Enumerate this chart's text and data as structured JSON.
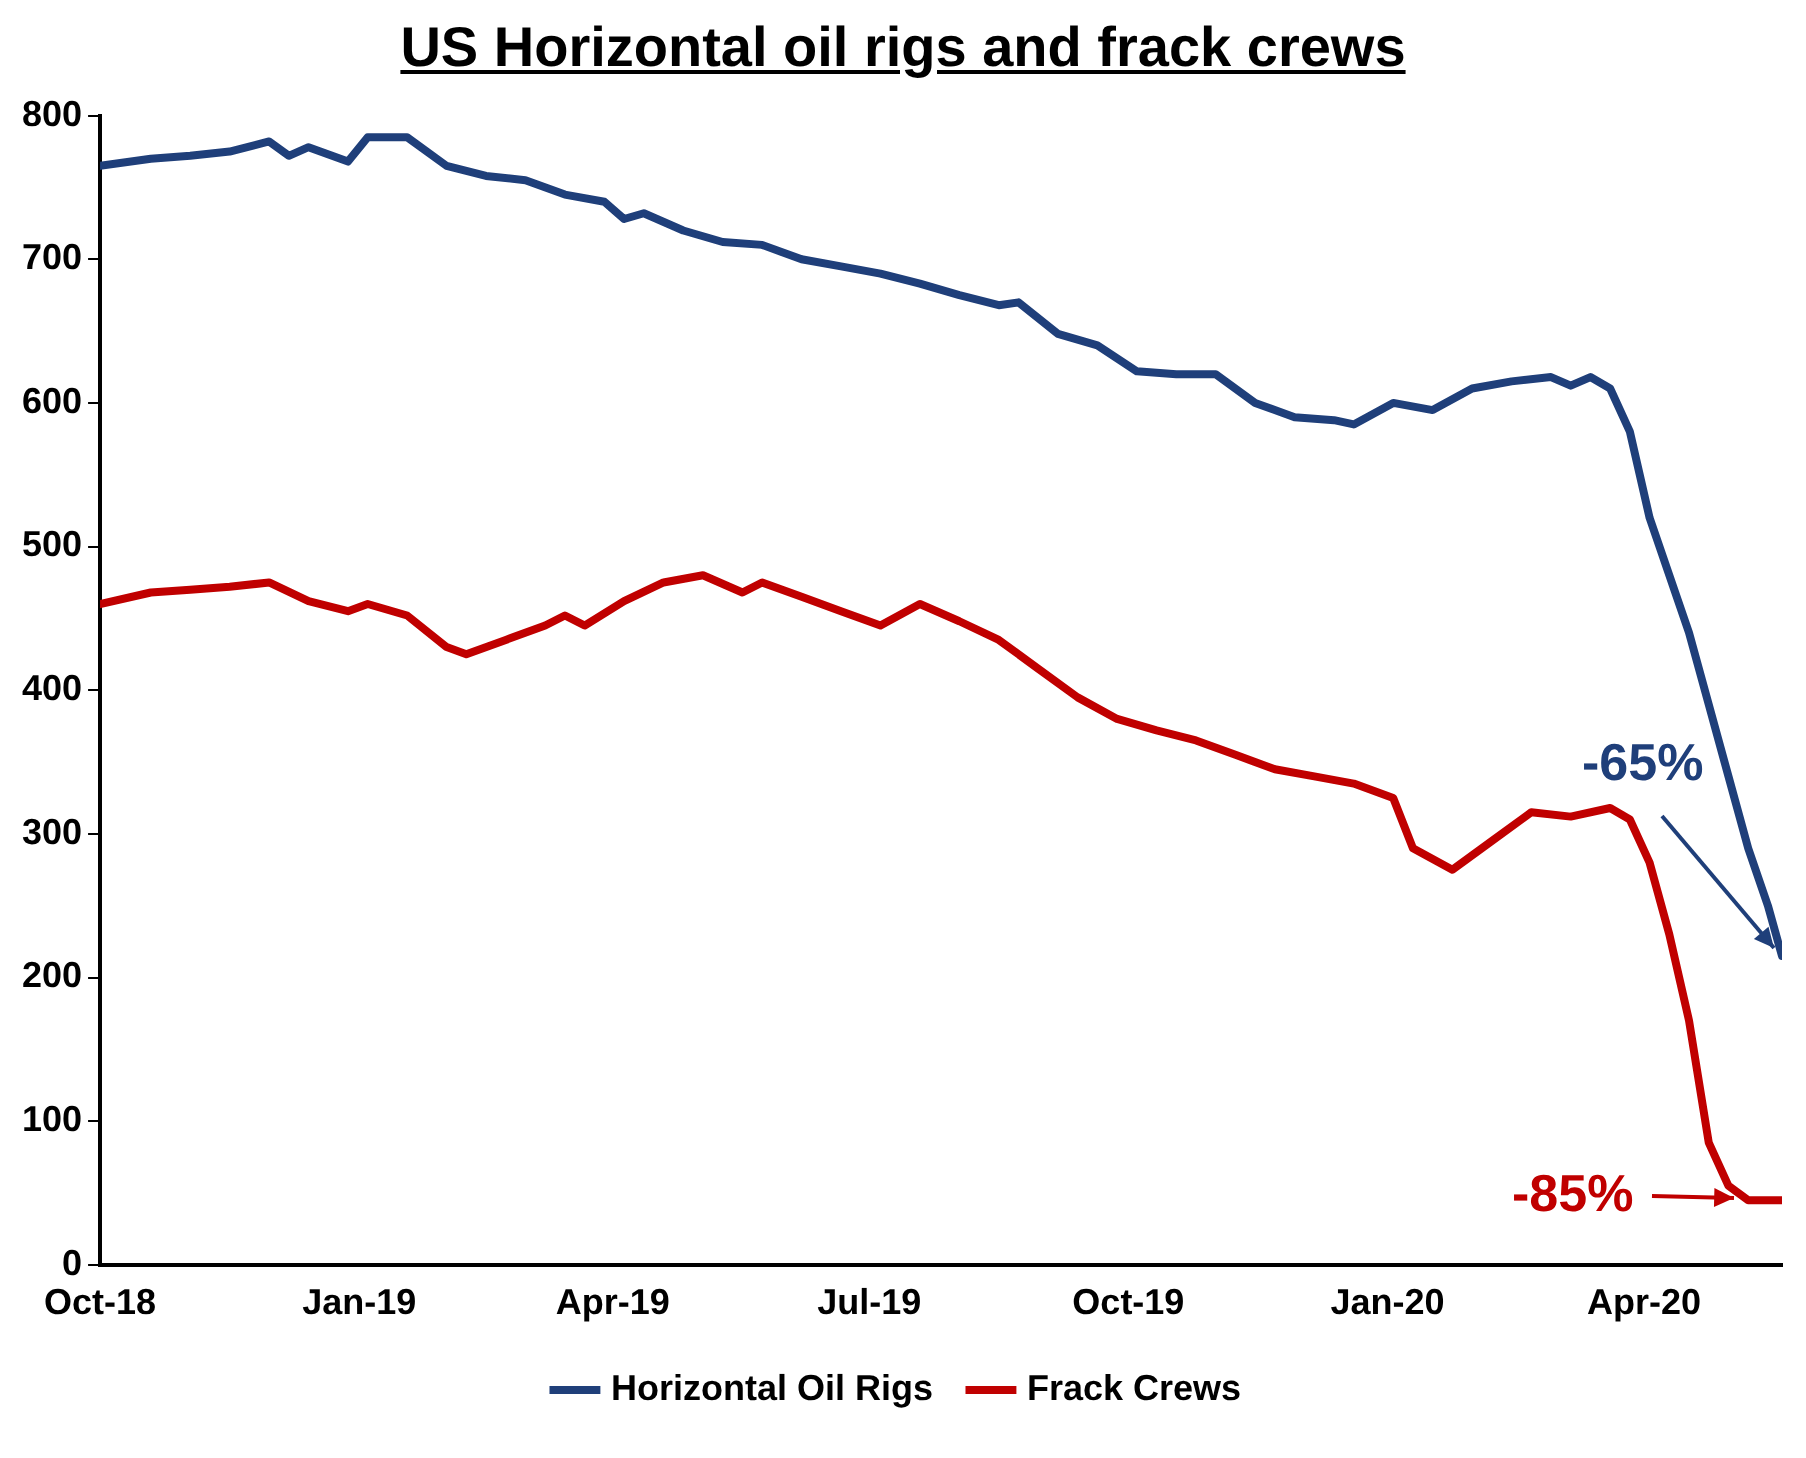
{
  "chart_data": {
    "type": "line",
    "title": "US Horizontal oil rigs and frack crews",
    "xlim": [
      "2018-10-01",
      "2020-05-20"
    ],
    "xticks": [
      {
        "value": "2018-10-01",
        "label": "Oct-18"
      },
      {
        "value": "2019-01-01",
        "label": "Jan-19"
      },
      {
        "value": "2019-04-01",
        "label": "Apr-19"
      },
      {
        "value": "2019-07-01",
        "label": "Jul-19"
      },
      {
        "value": "2019-10-01",
        "label": "Oct-19"
      },
      {
        "value": "2020-01-01",
        "label": "Jan-20"
      },
      {
        "value": "2020-04-01",
        "label": "Apr-20"
      }
    ],
    "ylim": [
      0,
      800
    ],
    "yticks": [
      0,
      100,
      200,
      300,
      400,
      500,
      600,
      700,
      800
    ],
    "grid": false,
    "legend": "bottom",
    "marker": "none",
    "line_style": "solid",
    "series": [
      {
        "name": "Horizontal Oil Rigs",
        "color": "#1f3f7a",
        "x": [
          "2018-10-01",
          "2018-10-19",
          "2018-11-02",
          "2018-11-16",
          "2018-11-30",
          "2018-12-07",
          "2018-12-14",
          "2018-12-28",
          "2019-01-04",
          "2019-01-18",
          "2019-02-01",
          "2019-02-15",
          "2019-03-01",
          "2019-03-15",
          "2019-03-29",
          "2019-04-05",
          "2019-04-12",
          "2019-04-26",
          "2019-05-10",
          "2019-05-24",
          "2019-06-07",
          "2019-06-21",
          "2019-07-05",
          "2019-07-19",
          "2019-08-02",
          "2019-08-16",
          "2019-08-23",
          "2019-09-06",
          "2019-09-20",
          "2019-10-04",
          "2019-10-18",
          "2019-11-01",
          "2019-11-15",
          "2019-11-29",
          "2019-12-13",
          "2019-12-20",
          "2020-01-03",
          "2020-01-17",
          "2020-01-31",
          "2020-02-14",
          "2020-02-28",
          "2020-03-06",
          "2020-03-13",
          "2020-03-20",
          "2020-03-27",
          "2020-04-03",
          "2020-04-10",
          "2020-04-17",
          "2020-04-24",
          "2020-05-01",
          "2020-05-08",
          "2020-05-15",
          "2020-05-20"
        ],
        "values": [
          765,
          770,
          772,
          775,
          782,
          772,
          778,
          768,
          785,
          785,
          765,
          758,
          755,
          745,
          740,
          728,
          732,
          720,
          712,
          710,
          700,
          695,
          690,
          683,
          675,
          668,
          670,
          648,
          640,
          622,
          620,
          620,
          600,
          590,
          588,
          585,
          600,
          595,
          610,
          615,
          618,
          612,
          618,
          610,
          580,
          520,
          480,
          440,
          390,
          340,
          290,
          250,
          215
        ]
      },
      {
        "name": "Frack Crews",
        "color": "#c00000",
        "x": [
          "2018-10-01",
          "2018-10-19",
          "2018-11-02",
          "2018-11-16",
          "2018-11-30",
          "2018-12-14",
          "2018-12-28",
          "2019-01-04",
          "2019-01-18",
          "2019-02-01",
          "2019-02-08",
          "2019-02-22",
          "2019-03-08",
          "2019-03-15",
          "2019-03-22",
          "2019-04-05",
          "2019-04-19",
          "2019-05-03",
          "2019-05-17",
          "2019-05-24",
          "2019-06-07",
          "2019-06-21",
          "2019-07-05",
          "2019-07-19",
          "2019-08-02",
          "2019-08-16",
          "2019-08-30",
          "2019-09-13",
          "2019-09-27",
          "2019-10-11",
          "2019-10-25",
          "2019-11-08",
          "2019-11-22",
          "2019-12-06",
          "2019-12-20",
          "2020-01-03",
          "2020-01-10",
          "2020-01-24",
          "2020-02-07",
          "2020-02-21",
          "2020-03-06",
          "2020-03-20",
          "2020-03-27",
          "2020-04-03",
          "2020-04-10",
          "2020-04-17",
          "2020-04-24",
          "2020-05-01",
          "2020-05-08",
          "2020-05-20"
        ],
        "values": [
          460,
          468,
          470,
          472,
          475,
          462,
          455,
          460,
          452,
          430,
          425,
          435,
          445,
          452,
          445,
          462,
          475,
          480,
          468,
          475,
          465,
          455,
          445,
          460,
          448,
          435,
          415,
          395,
          380,
          372,
          365,
          355,
          345,
          340,
          335,
          325,
          290,
          275,
          295,
          315,
          312,
          318,
          310,
          280,
          230,
          170,
          85,
          55,
          45,
          45
        ]
      }
    ],
    "annotations": [
      {
        "text": "-65%",
        "x": "2020-05-20",
        "y": 215
      },
      {
        "text": "-85%",
        "x": "2020-05-20",
        "y": 45
      }
    ]
  }
}
